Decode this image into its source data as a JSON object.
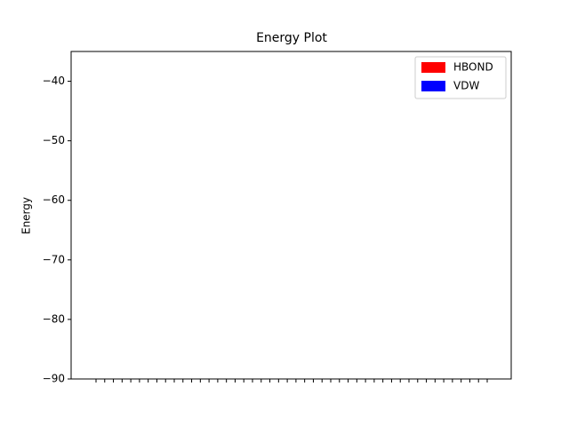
{
  "chart_data": {
    "type": "bar",
    "title": "Energy Plot",
    "ylabel": "Energy",
    "categories": [
      null,
      null,
      null,
      null,
      null,
      null,
      null,
      null,
      null,
      null,
      null,
      null,
      null,
      null,
      null,
      null,
      null,
      null,
      null,
      null,
      null,
      null,
      null,
      null,
      null,
      null,
      null,
      null,
      null,
      null,
      null,
      null,
      null,
      null,
      null,
      null,
      null,
      null,
      null,
      null,
      null,
      null,
      null,
      null,
      null,
      null
    ],
    "series": [
      {
        "name": "HBOND",
        "color": "#ff0000",
        "values": [
          null,
          null,
          null,
          null,
          null,
          null,
          null,
          null,
          null,
          null,
          null,
          null,
          null,
          null,
          null,
          null,
          null,
          null,
          null,
          null,
          null,
          null,
          null,
          null,
          null,
          null,
          null,
          null,
          null,
          null,
          null,
          null,
          null,
          null,
          null,
          null,
          null,
          null,
          null,
          null,
          null,
          null,
          null,
          null,
          null,
          null
        ]
      },
      {
        "name": "VDW",
        "color": "#0000ff",
        "values": [
          null,
          null,
          null,
          null,
          null,
          null,
          null,
          null,
          null,
          null,
          null,
          null,
          null,
          null,
          null,
          null,
          null,
          null,
          null,
          null,
          null,
          null,
          null,
          null,
          null,
          null,
          null,
          null,
          null,
          null,
          null,
          null,
          null,
          null,
          null,
          null,
          null,
          null,
          null,
          null,
          null,
          null,
          null,
          null,
          null,
          null
        ]
      }
    ],
    "ylim": [
      -90,
      -35
    ],
    "yticks": [
      {
        "value": -90,
        "label": "−90"
      },
      {
        "value": -80,
        "label": "−80"
      },
      {
        "value": -70,
        "label": "−70"
      },
      {
        "value": -60,
        "label": "−60"
      },
      {
        "value": -50,
        "label": "−50"
      },
      {
        "value": -40,
        "label": "−40"
      }
    ],
    "legend": "upper right"
  }
}
